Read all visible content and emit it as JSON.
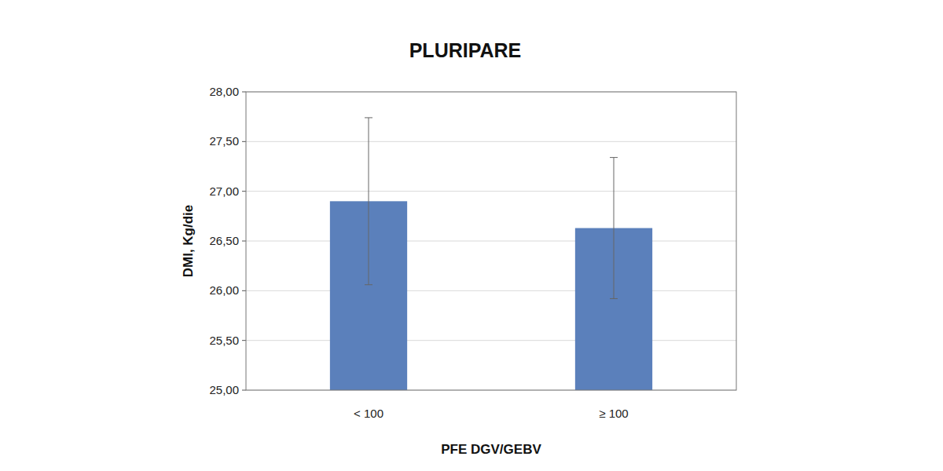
{
  "chart_data": {
    "type": "bar",
    "title": "PLURIPARE",
    "x_label": "PFE DGV/GEBV",
    "y_label": "DMI, Kg/die",
    "categories": [
      "< 100",
      "≥ 100"
    ],
    "values": [
      26.9,
      26.63
    ],
    "errors": [
      0.84,
      0.71
    ],
    "color": "#5b80bb",
    "ylim": [
      25,
      28
    ],
    "yticks": [
      {
        "value": 25,
        "label": "25,00"
      },
      {
        "value": 25.5,
        "label": "25,50"
      },
      {
        "value": 26,
        "label": "26,00"
      },
      {
        "value": 26.5,
        "label": "26,50"
      },
      {
        "value": 27,
        "label": "27,00"
      },
      {
        "value": 27.5,
        "label": "27,50"
      },
      {
        "value": 28,
        "label": "28,00"
      }
    ],
    "grid": true
  }
}
